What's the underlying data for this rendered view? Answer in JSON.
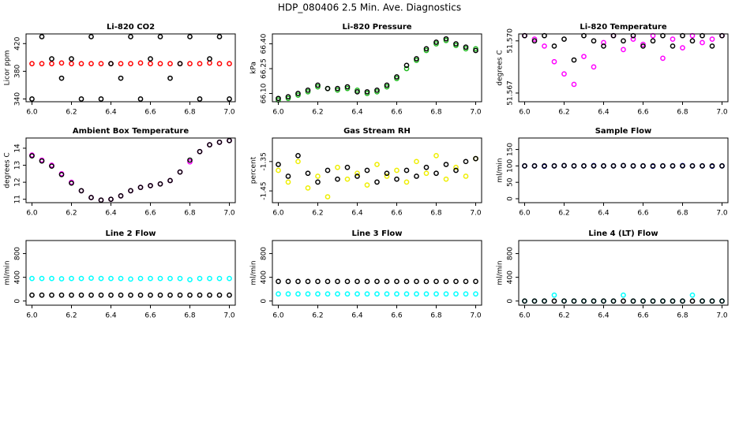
{
  "title": "HDP_080406  2.5 Min. Ave. Diagnostics",
  "chart_data": [
    {
      "type": "scatter",
      "title": "Li-820 CO2",
      "y_label": "Licor ppm",
      "x": [
        6.0,
        6.05,
        6.1,
        6.15,
        6.2,
        6.25,
        6.3,
        6.35,
        6.4,
        6.45,
        6.5,
        6.55,
        6.6,
        6.65,
        6.7,
        6.75,
        6.8,
        6.85,
        6.9,
        6.95,
        7.0
      ],
      "xlim": [
        5.97,
        7.03
      ],
      "xticks": [
        {
          "value": 6,
          "label": "6.0"
        },
        6.2,
        6.4,
        6.6,
        6.8,
        {
          "value": 7,
          "label": "7.0"
        }
      ],
      "ylim": [
        336,
        434
      ],
      "yticks": [
        340,
        380,
        420
      ],
      "series": [
        {
          "color": "#ff0000",
          "values": [
            391,
            391,
            391,
            392,
            391,
            391,
            391,
            391,
            391,
            391,
            391,
            392,
            391,
            391,
            391,
            391,
            391,
            391,
            392,
            391,
            391
          ]
        },
        {
          "color": "#000000",
          "values": [
            340,
            430,
            398,
            370,
            398,
            340,
            430,
            340,
            391,
            370,
            430,
            340,
            398,
            430,
            370,
            391,
            430,
            340,
            398,
            430,
            340
          ]
        }
      ]
    },
    {
      "type": "scatter",
      "title": "Li-820 Pressure",
      "y_label": "kPa",
      "x": [
        6.0,
        6.05,
        6.1,
        6.15,
        6.2,
        6.25,
        6.3,
        6.35,
        6.4,
        6.45,
        6.5,
        6.55,
        6.6,
        6.65,
        6.7,
        6.75,
        6.8,
        6.85,
        6.9,
        6.95,
        7.0
      ],
      "xlim": [
        5.97,
        7.03
      ],
      "xticks": [
        {
          "value": 6,
          "label": "6.0"
        },
        6.2,
        6.4,
        6.6,
        6.8,
        {
          "value": 7,
          "label": "7.0"
        }
      ],
      "ylim": [
        66.05,
        66.46
      ],
      "yticks": [
        {
          "value": 66.1,
          "label": "66.10"
        },
        66.25,
        {
          "value": 66.4,
          "label": "66.40"
        }
      ],
      "series": [
        {
          "color": "#22bb22",
          "values": [
            66.06,
            66.07,
            66.09,
            66.11,
            66.14,
            66.13,
            66.12,
            66.13,
            66.12,
            66.1,
            66.11,
            66.14,
            66.19,
            66.25,
            66.3,
            66.36,
            66.4,
            66.42,
            66.39,
            66.37,
            66.37
          ]
        },
        {
          "color": "#000000",
          "values": [
            66.07,
            66.08,
            66.1,
            66.12,
            66.15,
            66.13,
            66.13,
            66.14,
            66.11,
            66.11,
            66.12,
            66.15,
            66.2,
            66.27,
            66.31,
            66.37,
            66.41,
            66.43,
            66.4,
            66.38,
            66.36
          ]
        }
      ]
    },
    {
      "type": "scatter",
      "title": "Li-820 Temperature",
      "y_label": "degrees C",
      "x": [
        6.0,
        6.05,
        6.1,
        6.15,
        6.2,
        6.25,
        6.3,
        6.35,
        6.4,
        6.45,
        6.5,
        6.55,
        6.6,
        6.65,
        6.7,
        6.75,
        6.8,
        6.85,
        6.9,
        6.95,
        7.0
      ],
      "xlim": [
        5.97,
        7.03
      ],
      "xticks": [
        {
          "value": 6,
          "label": "6.0"
        },
        6.2,
        6.4,
        6.6,
        6.8,
        {
          "value": 7,
          "label": "7.0"
        }
      ],
      "ylim": [
        51.5665,
        51.5704
      ],
      "yticks": [
        51.567,
        {
          "value": 51.57,
          "label": "51.570"
        }
      ],
      "series": [
        {
          "color": "#ff00ff",
          "values": [
            51.5703,
            51.5701,
            51.5697,
            51.5688,
            51.5681,
            51.5675,
            51.5691,
            51.5685,
            51.5699,
            51.5703,
            51.5695,
            51.5701,
            51.5698,
            51.5703,
            51.569,
            51.5701,
            51.5696,
            51.5703,
            51.5699,
            51.5701,
            51.5703
          ]
        },
        {
          "color": "#000000",
          "values": [
            51.5703,
            51.57,
            51.5703,
            51.5697,
            51.5701,
            51.5689,
            51.5703,
            51.57,
            51.5697,
            51.5703,
            51.57,
            51.5703,
            51.5697,
            51.57,
            51.5703,
            51.5697,
            51.5703,
            51.57,
            51.5703,
            51.5697,
            51.5703
          ]
        }
      ]
    },
    {
      "type": "scatter",
      "title": "Ambient Box Temperature",
      "y_label": "degrees C",
      "x": [
        6.0,
        6.05,
        6.1,
        6.15,
        6.2,
        6.25,
        6.3,
        6.35,
        6.4,
        6.45,
        6.5,
        6.55,
        6.6,
        6.65,
        6.7,
        6.75,
        6.8,
        6.85,
        6.9,
        6.95,
        7.0
      ],
      "xlim": [
        5.97,
        7.03
      ],
      "xticks": [
        {
          "value": 6,
          "label": "6.0"
        },
        6.2,
        6.4,
        6.6,
        6.8,
        {
          "value": 7,
          "label": "7.0"
        }
      ],
      "ylim": [
        10.8,
        14.6
      ],
      "yticks": [
        11,
        12,
        13,
        14
      ],
      "series": [
        {
          "color": "#ff00ff",
          "values": [
            13.6,
            13.3,
            13,
            12.5,
            12,
            11.5,
            11.1,
            10.95,
            11,
            11.2,
            11.5,
            11.7,
            11.8,
            11.9,
            12.1,
            12.6,
            13.2,
            13.8,
            14.2,
            14.35,
            14.45
          ]
        },
        {
          "color": "#000000",
          "values": [
            13.55,
            13.25,
            12.95,
            12.45,
            11.95,
            11.5,
            11.1,
            10.95,
            11,
            11.2,
            11.5,
            11.7,
            11.8,
            11.9,
            12.1,
            12.6,
            13.3,
            13.8,
            14.2,
            14.35,
            14.45
          ]
        }
      ]
    },
    {
      "type": "scatter",
      "title": "Gas Stream RH",
      "y_label": "percent",
      "x": [
        6.0,
        6.05,
        6.1,
        6.15,
        6.2,
        6.25,
        6.3,
        6.35,
        6.4,
        6.45,
        6.5,
        6.55,
        6.6,
        6.65,
        6.7,
        6.75,
        6.8,
        6.85,
        6.9,
        6.95,
        7.0
      ],
      "xlim": [
        5.97,
        7.03
      ],
      "xticks": [
        {
          "value": 6,
          "label": "6.0"
        },
        6.2,
        6.4,
        6.6,
        6.8,
        {
          "value": 7,
          "label": "7.0"
        }
      ],
      "ylim": [
        -1.49,
        -1.27
      ],
      "yticks": [
        -1.45,
        -1.35
      ],
      "series": [
        {
          "color": "#eeee00",
          "values": [
            -1.38,
            -1.42,
            -1.35,
            -1.44,
            -1.4,
            -1.47,
            -1.37,
            -1.41,
            -1.39,
            -1.43,
            -1.36,
            -1.4,
            -1.38,
            -1.42,
            -1.35,
            -1.39,
            -1.33,
            -1.41,
            -1.37,
            -1.4,
            -1.34
          ]
        },
        {
          "color": "#000000",
          "values": [
            -1.36,
            -1.4,
            -1.33,
            -1.39,
            -1.42,
            -1.38,
            -1.41,
            -1.37,
            -1.4,
            -1.38,
            -1.42,
            -1.39,
            -1.41,
            -1.38,
            -1.4,
            -1.37,
            -1.39,
            -1.36,
            -1.38,
            -1.35,
            -1.34
          ]
        }
      ]
    },
    {
      "type": "scatter",
      "title": "Sample Flow",
      "y_label": "ml/min",
      "x": [
        6.0,
        6.05,
        6.1,
        6.15,
        6.2,
        6.25,
        6.3,
        6.35,
        6.4,
        6.45,
        6.5,
        6.55,
        6.6,
        6.65,
        6.7,
        6.75,
        6.8,
        6.85,
        6.9,
        6.95,
        7.0
      ],
      "xlim": [
        5.97,
        7.03
      ],
      "xticks": [
        {
          "value": 6,
          "label": "6.0"
        },
        6.2,
        6.4,
        6.6,
        6.8,
        {
          "value": 7,
          "label": "7.0"
        }
      ],
      "ylim": [
        -12,
        185
      ],
      "yticks": [
        0,
        50,
        100,
        150
      ],
      "series": [
        {
          "color": "#0000cc",
          "values": [
            100,
            100,
            99,
            100,
            101,
            100,
            100,
            101,
            100,
            100,
            101,
            100,
            100,
            99,
            100,
            100,
            101,
            100,
            100,
            99,
            100
          ]
        },
        {
          "color": "#000000",
          "values": [
            100,
            100,
            100,
            100,
            101,
            100,
            100,
            100,
            100,
            100,
            101,
            100,
            100,
            100,
            100,
            100,
            100,
            100,
            100,
            100,
            100
          ]
        }
      ]
    },
    {
      "type": "scatter",
      "title": "Line 2 Flow",
      "y_label": "ml/min",
      "x": [
        6.0,
        6.05,
        6.1,
        6.15,
        6.2,
        6.25,
        6.3,
        6.35,
        6.4,
        6.45,
        6.5,
        6.55,
        6.6,
        6.65,
        6.7,
        6.75,
        6.8,
        6.85,
        6.9,
        6.95,
        7.0
      ],
      "xlim": [
        5.97,
        7.03
      ],
      "xticks": [
        {
          "value": 6,
          "label": "6.0"
        },
        6.2,
        6.4,
        6.6,
        6.8,
        {
          "value": 7,
          "label": "7.0"
        }
      ],
      "ylim": [
        -70,
        1020
      ],
      "yticks": [
        0,
        400,
        800
      ],
      "series": [
        {
          "color": "#00ffff",
          "values": [
            380,
            380,
            380,
            375,
            380,
            380,
            385,
            380,
            380,
            380,
            370,
            380,
            380,
            380,
            380,
            380,
            360,
            380,
            380,
            380,
            380
          ]
        },
        {
          "color": "#000000",
          "values": [
            100,
            100,
            100,
            100,
            100,
            100,
            100,
            100,
            100,
            100,
            100,
            100,
            100,
            100,
            100,
            100,
            100,
            100,
            100,
            100,
            100
          ]
        }
      ]
    },
    {
      "type": "scatter",
      "title": "Line 3 Flow",
      "y_label": "ml/min",
      "x": [
        6.0,
        6.05,
        6.1,
        6.15,
        6.2,
        6.25,
        6.3,
        6.35,
        6.4,
        6.45,
        6.5,
        6.55,
        6.6,
        6.65,
        6.7,
        6.75,
        6.8,
        6.85,
        6.9,
        6.95,
        7.0
      ],
      "xlim": [
        5.97,
        7.03
      ],
      "xticks": [
        {
          "value": 6,
          "label": "6.0"
        },
        6.2,
        6.4,
        6.6,
        6.8,
        {
          "value": 7,
          "label": "7.0"
        }
      ],
      "ylim": [
        -70,
        1020
      ],
      "yticks": [
        0,
        400,
        800
      ],
      "series": [
        {
          "color": "#00ffff",
          "values": [
            120,
            120,
            120,
            120,
            120,
            120,
            120,
            120,
            120,
            120,
            120,
            120,
            120,
            120,
            120,
            120,
            120,
            120,
            120,
            120,
            120
          ]
        },
        {
          "color": "#000000",
          "values": [
            330,
            330,
            330,
            330,
            330,
            330,
            330,
            330,
            330,
            330,
            330,
            330,
            330,
            330,
            330,
            330,
            330,
            330,
            330,
            330,
            330
          ]
        }
      ]
    },
    {
      "type": "scatter",
      "title": "Line 4 (LT) Flow",
      "y_label": "ml/min",
      "x": [
        6.0,
        6.05,
        6.1,
        6.15,
        6.2,
        6.25,
        6.3,
        6.35,
        6.4,
        6.45,
        6.5,
        6.55,
        6.6,
        6.65,
        6.7,
        6.75,
        6.8,
        6.85,
        6.9,
        6.95,
        7.0
      ],
      "xlim": [
        5.97,
        7.03
      ],
      "xticks": [
        {
          "value": 6,
          "label": "6.0"
        },
        6.2,
        6.4,
        6.6,
        6.8,
        {
          "value": 7,
          "label": "7.0"
        }
      ],
      "ylim": [
        -70,
        1020
      ],
      "yticks": [
        0,
        400,
        800
      ],
      "series": [
        {
          "color": "#00ffff",
          "values": [
            0,
            0,
            0,
            100,
            0,
            0,
            0,
            0,
            0,
            0,
            100,
            0,
            0,
            0,
            0,
            0,
            0,
            100,
            0,
            0,
            0
          ]
        },
        {
          "color": "#000000",
          "values": [
            0,
            0,
            0,
            0,
            0,
            0,
            0,
            0,
            0,
            0,
            0,
            0,
            0,
            0,
            0,
            0,
            0,
            0,
            0,
            0,
            0
          ]
        }
      ]
    }
  ]
}
